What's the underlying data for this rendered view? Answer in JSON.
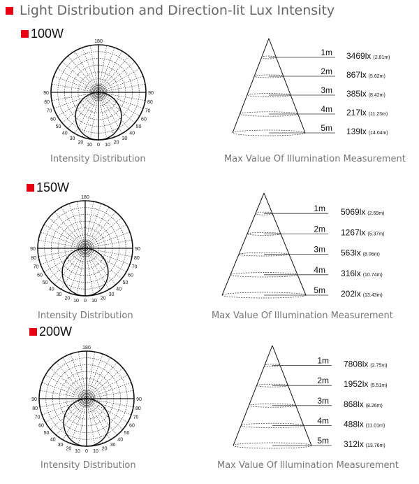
{
  "title": "Light Distribution and Direction-lit Lux Intensity",
  "accent_color": "#e60012",
  "polar_angle_labels": {
    "top": "180",
    "left": [
      "90",
      "80",
      "70",
      "60",
      "50",
      "40",
      "30",
      "20",
      "10"
    ],
    "bottom": "0",
    "right": [
      "90",
      "80",
      "70",
      "60",
      "50",
      "40",
      "30",
      "20",
      "10"
    ]
  },
  "sections": [
    {
      "wattage": "100W",
      "polar_caption": "Intensity Distribution",
      "cone_caption": "Max Value Of Illumination Measurement",
      "levels": [
        {
          "distance": "1m",
          "lux": "3469lx",
          "diameter": "(2.81m)"
        },
        {
          "distance": "2m",
          "lux": "867lx",
          "diameter": "(5.62m)"
        },
        {
          "distance": "3m",
          "lux": "385lx",
          "diameter": "(8.42m)"
        },
        {
          "distance": "4m",
          "lux": "217lx",
          "diameter": "(11.23m)"
        },
        {
          "distance": "5m",
          "lux": "139lx",
          "diameter": "(14.04m)"
        }
      ]
    },
    {
      "wattage": "150W",
      "polar_caption": "Intensity Distribution",
      "cone_caption": "Max Value Of Illumination Measurement",
      "levels": [
        {
          "distance": "1m",
          "lux": "5069lx",
          "diameter": "(2.69m)"
        },
        {
          "distance": "2m",
          "lux": "1267lx",
          "diameter": "(5.37m)"
        },
        {
          "distance": "3m",
          "lux": "563lx",
          "diameter": "(8.06m)"
        },
        {
          "distance": "4m",
          "lux": "316lx",
          "diameter": "(10.74m)"
        },
        {
          "distance": "5m",
          "lux": "202lx",
          "diameter": "(13.43m)"
        }
      ]
    },
    {
      "wattage": "200W",
      "polar_caption": "Intensity Distribution",
      "cone_caption": "Max Value Of Illumination Measurement",
      "levels": [
        {
          "distance": "1m",
          "lux": "7808lx",
          "diameter": "(2.75m)"
        },
        {
          "distance": "2m",
          "lux": "1952lx",
          "diameter": "(5.51m)"
        },
        {
          "distance": "3m",
          "lux": "868lx",
          "diameter": "(8.26m)"
        },
        {
          "distance": "4m",
          "lux": "488lx",
          "diameter": "(11.01m)"
        },
        {
          "distance": "5m",
          "lux": "312lx",
          "diameter": "(13.76m)"
        }
      ]
    }
  ]
}
